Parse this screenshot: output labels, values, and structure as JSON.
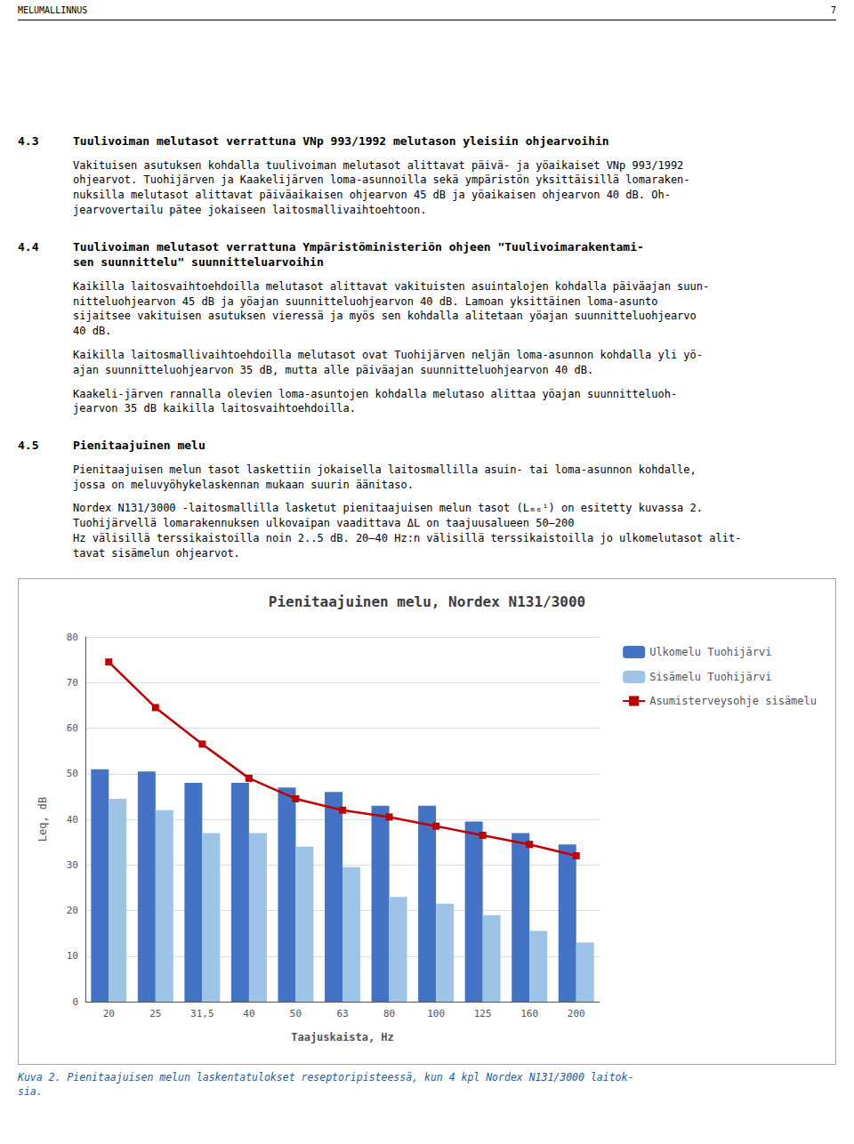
{
  "chart_data": {
    "type": "bar",
    "title": "Pienitaajuinen melu, Nordex N131/3000",
    "xlabel": "Taajuskaista, Hz",
    "ylabel": "Leq, dB",
    "categories": [
      "20",
      "25",
      "31,5",
      "40",
      "50",
      "63",
      "80",
      "100",
      "125",
      "160",
      "200"
    ],
    "series": [
      {
        "name": "Ulkomelu Tuohijärvi",
        "type": "bar",
        "color": "#4472C4",
        "values": [
          51,
          50.5,
          48,
          48,
          47,
          46,
          43,
          43,
          39.5,
          37,
          34.5
        ]
      },
      {
        "name": "Sisämelu Tuohijärvi",
        "type": "bar",
        "color": "#9DC3E6",
        "values": [
          44.5,
          42,
          37,
          37,
          34,
          29.5,
          23,
          21.5,
          19,
          15.5,
          13
        ]
      },
      {
        "name": "Asumisterveysohje sisämelu",
        "type": "line",
        "color": "#C00000",
        "marker": "square",
        "values": [
          74.5,
          64.5,
          56.5,
          49,
          44.5,
          42,
          40.5,
          38.5,
          36.5,
          34.5,
          32
        ]
      }
    ],
    "ylim": [
      0,
      80
    ],
    "yticks": [
      0,
      10,
      20,
      30,
      40,
      50,
      60,
      70,
      80
    ],
    "grid": true,
    "legend": "upper right",
    "annotations": [
      "MELUMALLINNUS",
      "7",
      "4.3",
      "Tuulivoiman melutasot verrattuna VNp 993/1992 melutason yleisiin ohjearvoihin",
      "Vakituisen asutuksen kohdalla tuulivoiman melutasot alittavat päivä- ja yöaikaiset VNp 993/1992\nohjearvot. Tuohijärven ja Kaakelijärven loma-asunnoilla sekä ympäristön yksittäisillä lomaraken-\nnuksilla melutasot alittavat päiväaikaisen ohjearvon 45 dB ja yöaikaisen ohjearvon 40 dB. Oh-\njearvovertailu pätee jokaiseen laitosmallivaihtoehtoon.",
      "4.4",
      "Tuulivoiman melutasot verrattuna Ympäristöministeriön ohjeen \"Tuulivoimarakentami-\nsen suunnittelu\" suunnitteluarvoihin",
      "Kaikilla laitosvaihtoehdoilla melutasot alittavat vakituisten asuintalojen kohdalla päiväajan suun-\nnitteluohjearvon 45 dB ja yöajan suunnitteluohjearvon 40 dB. Lamoan yksittäinen loma-asunto\nsijaitsee vakituisen asutuksen vieressä ja myös sen kohdalla alitetaan yöajan suunnitteluohjearvo\n40 dB.",
      "Kaikilla laitosmallivaihtoehdoilla melutasot ovat Tuohijärven neljän loma-asunnon kohdalla yli yö-\najan suunnitteluohjearvon 35 dB, mutta alle päiväajan suunnitteluohjearvon 40 dB.",
      "Kaakeli-järven rannalla olevien loma-asuntojen kohdalla melutaso alittaa yöajan suunnitteluoh-\njearvon 35 dB kaikilla laitosvaihtoehdoilla.",
      "4.5",
      "Pienitaajuinen melu",
      "Pienitaajuisen melun tasot laskettiin jokaisella laitosmallilla asuin- tai loma-asunnon kohdalle,\njossa on meluvyöhykelaskennan mukaan suurin äänitaso.",
      "Nordex N131/3000 -laitosmallilla lasketut pienitaajuisen melun tasot (Lₘₑⁱ) on esitetty kuvassa 2.\nTuohijärvellä lomarakennuksen ulkovaipan vaadittava ΔL on taajuusalueen 50–200\nHz välisillä terssikaistoilla noin 2..5 dB. 20–40 Hz:n välisillä terssikaistoilla jo ulkomelutasot alit-\ntavat sisämelun ohjearvot.",
      "Kuva 2. Pienitaajuisen melun laskentatulokset reseptoripisteessä, kun 4 kpl Nordex N131/3000 laitok-\nsia."
    ]
  }
}
